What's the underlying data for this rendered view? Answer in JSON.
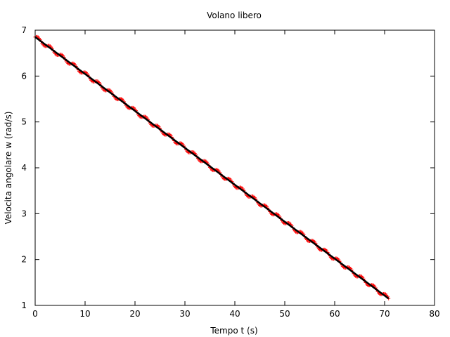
{
  "chart_data": {
    "type": "scatter",
    "title": "Volano libero",
    "xlabel": "Tempo t (s)",
    "ylabel": "Velocita angolare w (rad/s)",
    "xlim": [
      0,
      80
    ],
    "ylim": [
      1,
      7
    ],
    "xticks": [
      0,
      10,
      20,
      30,
      40,
      50,
      60,
      70,
      80
    ],
    "yticks": [
      1,
      2,
      3,
      4,
      5,
      6,
      7
    ],
    "grid": false,
    "legend": "none",
    "series": [
      {
        "kind": "points",
        "marker": "plus",
        "color": "#ff0000",
        "x_start": 0,
        "x_end": 70.8,
        "x_step": 0.2,
        "trend": {
          "slope": -0.0805,
          "intercept": 6.85
        },
        "ripple": {
          "amplitude": 0.045,
          "period": 2.4
        }
      },
      {
        "kind": "fit-line",
        "color": "#000000",
        "x": [
          0,
          70.8
        ],
        "y": [
          6.85,
          1.15
        ]
      }
    ]
  }
}
